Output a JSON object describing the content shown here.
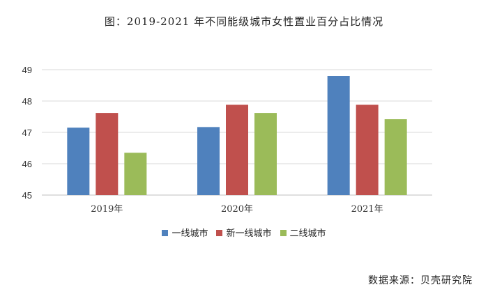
{
  "chart_data": {
    "type": "bar",
    "title": "图：2019-2021 年不同能级城市女性置业百分占比情况",
    "categories": [
      "2019年",
      "2020年",
      "2021年"
    ],
    "series": [
      {
        "name": "一线城市",
        "color": "#4f81bd",
        "values": [
          47.15,
          47.17,
          48.8
        ]
      },
      {
        "name": "新一线城市",
        "color": "#c0504d",
        "values": [
          47.62,
          47.88,
          47.88
        ]
      },
      {
        "name": "二线城市",
        "color": "#9bbb59",
        "values": [
          46.35,
          47.62,
          47.42
        ]
      }
    ],
    "ylim": [
      45,
      49
    ],
    "yticks": [
      45,
      46,
      47,
      48,
      49
    ],
    "xlabel": "",
    "ylabel": "",
    "grid": true,
    "legend_position": "bottom"
  },
  "source": "数据来源：贝壳研究院"
}
